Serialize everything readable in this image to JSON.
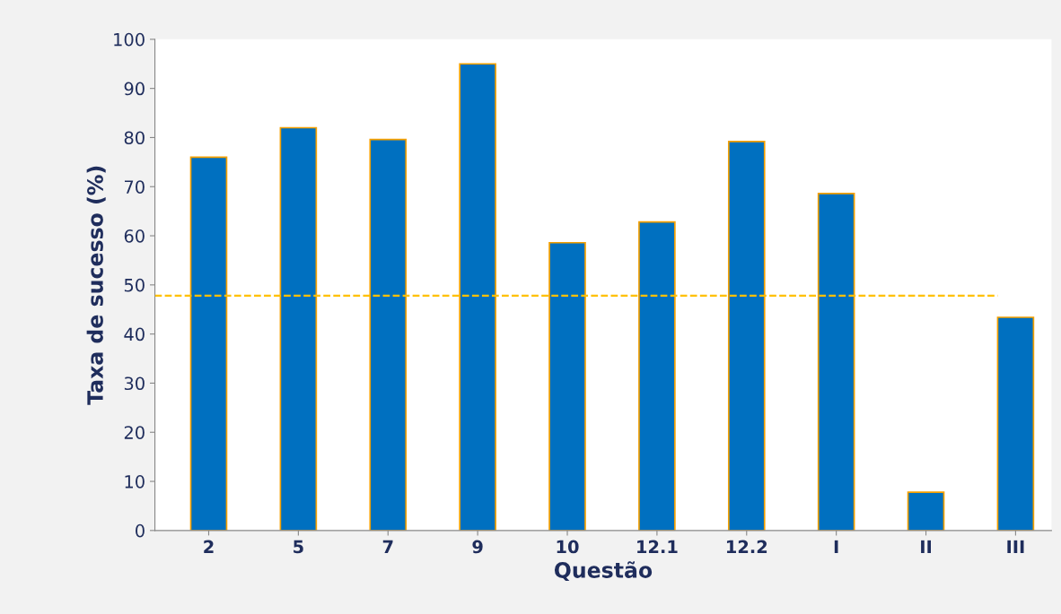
{
  "chart_data": {
    "type": "bar",
    "xlabel": "Questão",
    "ylabel": "Taxa de sucesso (%)",
    "categories": [
      "2",
      "5",
      "7",
      "9",
      "10",
      "12.1",
      "12.2",
      "I",
      "II",
      "III"
    ],
    "series": [
      {
        "color": "#0070c0",
        "values": [
          76,
          82,
          79.6,
          95,
          58.6,
          62.8,
          79.2,
          68.6,
          7.8,
          43.4
        ]
      }
    ],
    "ylim": [
      0,
      100
    ],
    "yticks": [
      0,
      10,
      20,
      30,
      40,
      50,
      60,
      70,
      80,
      90,
      100
    ],
    "ref_lines": [
      {
        "axis": "y",
        "value": 47.8,
        "color": "#ffc000",
        "line_style": "dashed"
      }
    ],
    "grid": false,
    "legend": false
  }
}
